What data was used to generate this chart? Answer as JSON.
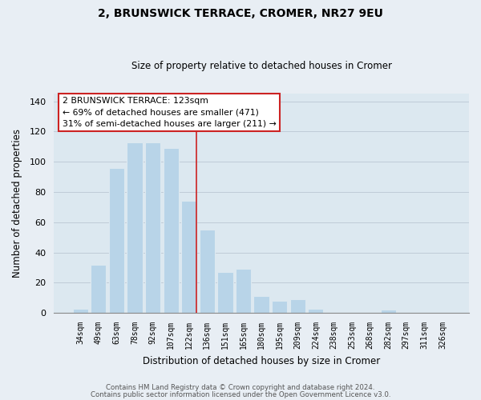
{
  "title": "2, BRUNSWICK TERRACE, CROMER, NR27 9EU",
  "subtitle": "Size of property relative to detached houses in Cromer",
  "xlabel": "Distribution of detached houses by size in Cromer",
  "ylabel": "Number of detached properties",
  "bar_labels": [
    "34sqm",
    "49sqm",
    "63sqm",
    "78sqm",
    "92sqm",
    "107sqm",
    "122sqm",
    "136sqm",
    "151sqm",
    "165sqm",
    "180sqm",
    "195sqm",
    "209sqm",
    "224sqm",
    "238sqm",
    "253sqm",
    "268sqm",
    "282sqm",
    "297sqm",
    "311sqm",
    "326sqm"
  ],
  "bar_values": [
    3,
    32,
    96,
    113,
    113,
    109,
    74,
    55,
    27,
    29,
    11,
    8,
    9,
    3,
    0,
    0,
    0,
    2,
    0,
    0,
    0
  ],
  "bar_color": "#b8d4e8",
  "ylim": [
    0,
    145
  ],
  "yticks": [
    0,
    20,
    40,
    60,
    80,
    100,
    120,
    140
  ],
  "vline_index": 6,
  "annotation_title": "2 BRUNSWICK TERRACE: 123sqm",
  "annotation_line1": "← 69% of detached houses are smaller (471)",
  "annotation_line2": "31% of semi-detached houses are larger (211) →",
  "footer1": "Contains HM Land Registry data © Crown copyright and database right 2024.",
  "footer2": "Contains public sector information licensed under the Open Government Licence v3.0.",
  "background_color": "#e8eef4",
  "plot_bg_color": "#dce8f0"
}
